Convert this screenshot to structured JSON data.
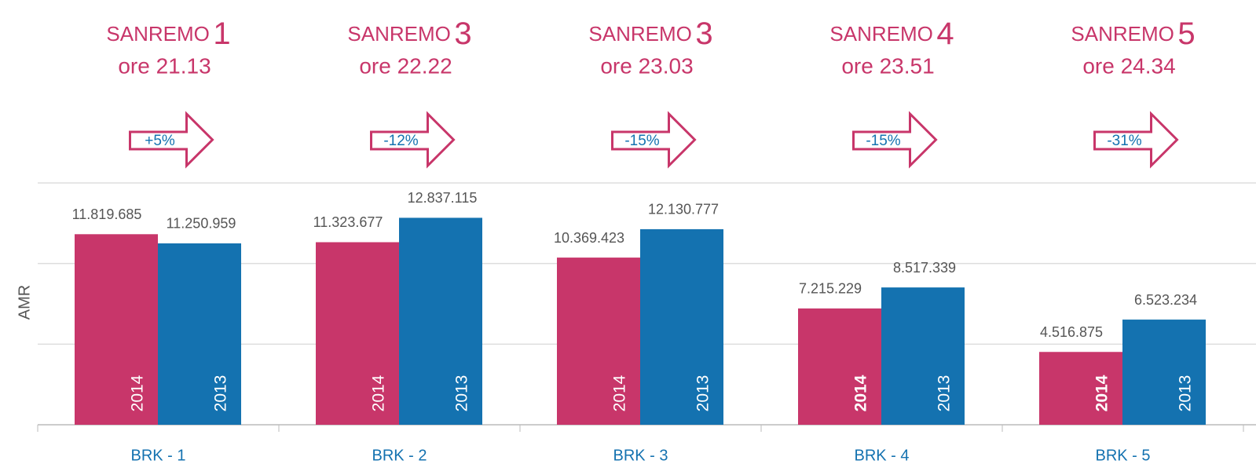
{
  "chart_data": {
    "type": "bar",
    "y_label": "AMR",
    "categories": [
      "BRK - 1",
      "BRK - 2",
      "BRK - 3",
      "BRK - 4",
      "BRK - 5"
    ],
    "series": [
      {
        "name": "2014",
        "color": "#c8366a",
        "values": [
          11819685,
          11323677,
          10369423,
          7215229,
          4516875
        ],
        "value_labels": [
          "11.819.685",
          "11.323.677",
          "10.369.423",
          "7.215.229",
          "4.516.875"
        ]
      },
      {
        "name": "2013",
        "color": "#1472b0",
        "values": [
          11250959,
          12837115,
          12130777,
          8517339,
          6523234
        ],
        "value_labels": [
          "11.250.959",
          "12.837.115",
          "12.130.777",
          "8.517.339",
          "6.523.234"
        ]
      }
    ],
    "ylim": [
      0,
      15000000
    ],
    "yticks": [
      0,
      5000000,
      10000000,
      15000000
    ],
    "grid": true,
    "annotations": [
      {
        "title": "SANREMO",
        "number": "1",
        "time": "ore 21.13",
        "change": "+5%"
      },
      {
        "title": "SANREMO",
        "number": "3",
        "time": "ore 22.22",
        "change": "-12%"
      },
      {
        "title": "SANREMO",
        "number": "3",
        "time": "ore 23.03",
        "change": "-15%"
      },
      {
        "title": "SANREMO",
        "number": "4",
        "time": "ore 23.51",
        "change": "-15%"
      },
      {
        "title": "SANREMO",
        "number": "5",
        "time": "ore 24.34",
        "change": "-31%"
      }
    ]
  }
}
